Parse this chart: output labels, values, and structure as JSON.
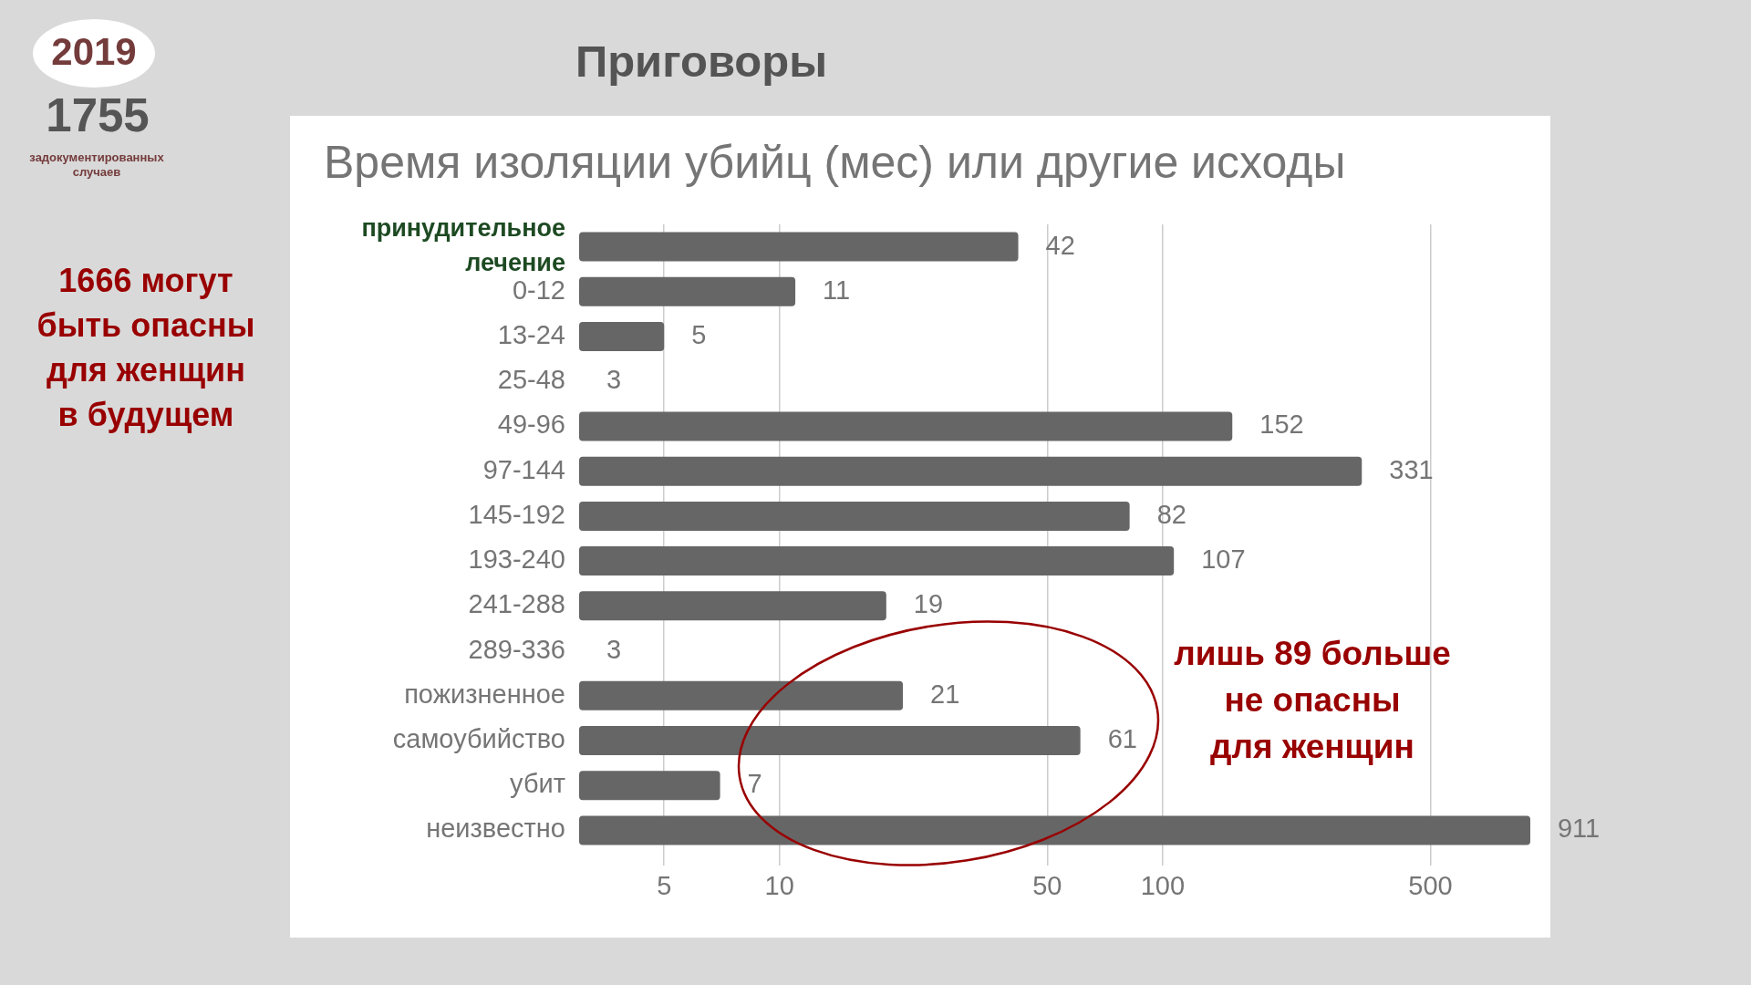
{
  "chart_data": {
    "type": "bar",
    "orientation": "horizontal",
    "title": "Приговоры",
    "subtitle": "Время изоляции убийц (мес) или другие исходы",
    "categories": [
      "принудительное лечение",
      "0-12",
      "13-24",
      "25-48",
      "49-96",
      "97-144",
      "145-192",
      "193-240",
      "241-288",
      "289-336",
      "пожизненное",
      "самоубийство",
      "убит",
      "неизвестно"
    ],
    "values": [
      42,
      11,
      5,
      3,
      152,
      331,
      82,
      107,
      19,
      3,
      21,
      61,
      7,
      911
    ],
    "color": "#666666",
    "log": "x",
    "xlim": [
      3,
      1000
    ],
    "xticks": [
      5,
      10,
      50,
      100,
      500
    ],
    "grid": "x",
    "data_labels": true,
    "annotations": [
      "2019",
      "1755",
      "задокументированных случаев",
      "1666 могут быть опасны для женщин в будущем",
      "лишь 89 больше не опасны для женщин"
    ]
  }
}
